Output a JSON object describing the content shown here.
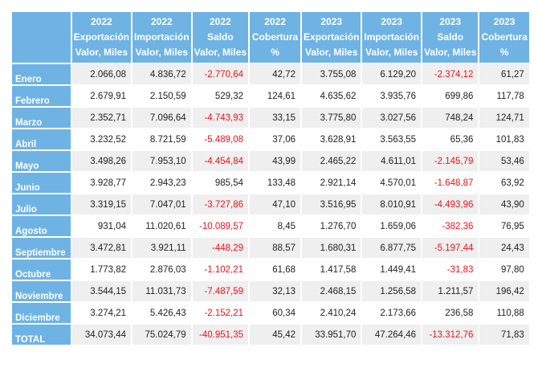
{
  "headers": [
    {
      "year": "2022",
      "line1": "Exportación",
      "line2": "Valor, Miles"
    },
    {
      "year": "2022",
      "line1": "Importación",
      "line2": "Valor, Miles"
    },
    {
      "year": "2022",
      "line1": "Saldo",
      "line2": "Valor, Miles"
    },
    {
      "year": "2022",
      "line1": "Cobertura",
      "line2": "%"
    },
    {
      "year": "2023",
      "line1": "Exportación",
      "line2": "Valor, Miles"
    },
    {
      "year": "2023",
      "line1": "Importación",
      "line2": "Valor, Miles"
    },
    {
      "year": "2023",
      "line1": "Saldo",
      "line2": "Valor, Miles"
    },
    {
      "year": "2023",
      "line1": "Cobertura",
      "line2": "%"
    }
  ],
  "rows": [
    {
      "label": "Enero",
      "values": [
        "2.066,08",
        "4.836,72",
        "-2.770,64",
        "42,72",
        "3.755,08",
        "6.129,20",
        "-2.374,12",
        "61,27"
      ]
    },
    {
      "label": "Febrero",
      "values": [
        "2.679,91",
        "2.150,59",
        "529,32",
        "124,61",
        "4.635,62",
        "3.935,76",
        "699,86",
        "117,78"
      ]
    },
    {
      "label": "Marzo",
      "values": [
        "2.352,71",
        "7.096,64",
        "-4.743,93",
        "33,15",
        "3.775,80",
        "3.027,56",
        "748,24",
        "124,71"
      ]
    },
    {
      "label": "Abril",
      "values": [
        "3.232,52",
        "8.721,59",
        "-5.489,08",
        "37,06",
        "3.628,91",
        "3.563,55",
        "65,36",
        "101,83"
      ]
    },
    {
      "label": "Mayo",
      "values": [
        "3.498,26",
        "7.953,10",
        "-4.454,84",
        "43,99",
        "2.465,22",
        "4.611,01",
        "-2.145,79",
        "53,46"
      ]
    },
    {
      "label": "Junio",
      "values": [
        "3.928,77",
        "2.943,23",
        "985,54",
        "133,48",
        "2.921,14",
        "4.570,01",
        "-1.648,87",
        "63,92"
      ]
    },
    {
      "label": "Julio",
      "values": [
        "3.319,15",
        "7.047,01",
        "-3.727,86",
        "47,10",
        "3.516,95",
        "8.010,91",
        "-4.493,96",
        "43,90"
      ]
    },
    {
      "label": "Agosto",
      "values": [
        "931,04",
        "11.020,61",
        "-10.089,57",
        "8,45",
        "1.276,70",
        "1.659,06",
        "-382,36",
        "76,95"
      ]
    },
    {
      "label": "Septiembre",
      "values": [
        "3.472,81",
        "3.921,11",
        "-448,29",
        "88,57",
        "1.680,31",
        "6.877,75",
        "-5.197,44",
        "24,43"
      ]
    },
    {
      "label": "Octubre",
      "values": [
        "1.773,82",
        "2.876,03",
        "-1.102,21",
        "61,68",
        "1.417,58",
        "1.449,41",
        "-31,83",
        "97,80"
      ]
    },
    {
      "label": "Noviembre",
      "values": [
        "3.544,15",
        "11.031,73",
        "-7.487,59",
        "32,13",
        "2.468,15",
        "1.256,58",
        "1.211,57",
        "196,42"
      ]
    },
    {
      "label": "Diciembre",
      "values": [
        "3.274,21",
        "5.426,43",
        "-2.152,21",
        "60,34",
        "2.410,24",
        "2.173,66",
        "236,58",
        "110,88"
      ]
    },
    {
      "label": "TOTAL",
      "values": [
        "34.073,44",
        "75.024,79",
        "-40.951,35",
        "45,42",
        "33.951,70",
        "47.264,46",
        "-13.312,76",
        "71,83"
      ]
    }
  ],
  "colors": {
    "header_bg": "#6fb3e4",
    "negative": "#e8151b",
    "stripe": "#efefef"
  }
}
